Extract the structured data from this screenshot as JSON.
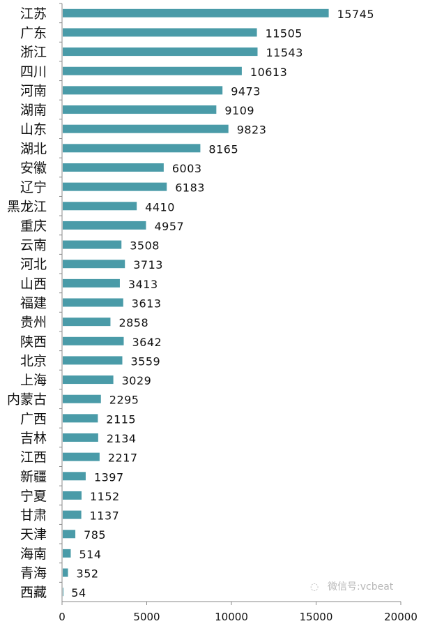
{
  "chart_data": {
    "type": "bar",
    "orientation": "horizontal",
    "categories": [
      "江苏",
      "广东",
      "浙江",
      "四川",
      "河南",
      "湖南",
      "山东",
      "湖北",
      "安徽",
      "辽宁",
      "黑龙江",
      "重庆",
      "云南",
      "河北",
      "山西",
      "福建",
      "贵州",
      "陕西",
      "北京",
      "上海",
      "内蒙古",
      "广西",
      "吉林",
      "江西",
      "新疆",
      "宁夏",
      "甘肃",
      "天津",
      "海南",
      "青海",
      "西藏"
    ],
    "values": [
      15745,
      11505,
      11543,
      10613,
      9473,
      9109,
      9823,
      8165,
      6003,
      6183,
      4410,
      4957,
      3508,
      3713,
      3413,
      3613,
      2858,
      3642,
      3559,
      3029,
      2295,
      2115,
      2134,
      2217,
      1397,
      1152,
      1137,
      785,
      514,
      352,
      54
    ],
    "xticks": [
      "0",
      "5000",
      "10000",
      "15000",
      "20000"
    ],
    "xlim": [
      0,
      20000
    ],
    "title": "",
    "xlabel": "",
    "ylabel": "",
    "grid": false,
    "data_labels": true,
    "bar_color": "#4a9ba8"
  },
  "watermark": "微信号:vcbeat"
}
